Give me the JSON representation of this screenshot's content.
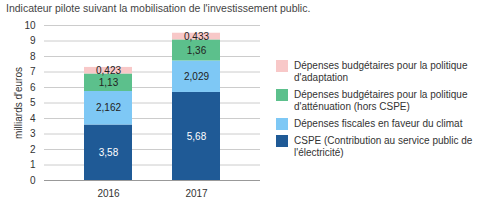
{
  "chart_data": {
    "type": "bar",
    "stacked": true,
    "title": "Indicateur pilote suivant la mobilisation de l'investissement public.",
    "y_label": "milliards d'euros",
    "categories": [
      "2016",
      "2017"
    ],
    "series": [
      {
        "name": "CSPE (Contribution au service public de l'électricité)",
        "color": "#1f5a96",
        "values": [
          3.58,
          5.68
        ],
        "value_labels": [
          "3,58",
          "5,68"
        ]
      },
      {
        "name": "Dépenses fiscales en faveur du climat",
        "color": "#7ec8f5",
        "values": [
          2.162,
          2.029
        ],
        "value_labels": [
          "2,162",
          "2,029"
        ]
      },
      {
        "name": "Dépenses budgétaires pour la politique d'atténuation (hors CSPE)",
        "color": "#5cc08c",
        "values": [
          1.13,
          1.36
        ],
        "value_labels": [
          "1,13",
          "1,36"
        ]
      },
      {
        "name": "Dépenses budgétaires pour la politique d'adaptation",
        "color": "#f8c8c8",
        "values": [
          0.423,
          0.433
        ],
        "value_labels": [
          "0,423",
          "0,433"
        ]
      }
    ],
    "ylim": [
      0,
      10
    ],
    "yticks": [
      0,
      1,
      2,
      3,
      4,
      5,
      6,
      7,
      8,
      9,
      10
    ],
    "grid": true,
    "data_labels": true,
    "legend": "right"
  }
}
